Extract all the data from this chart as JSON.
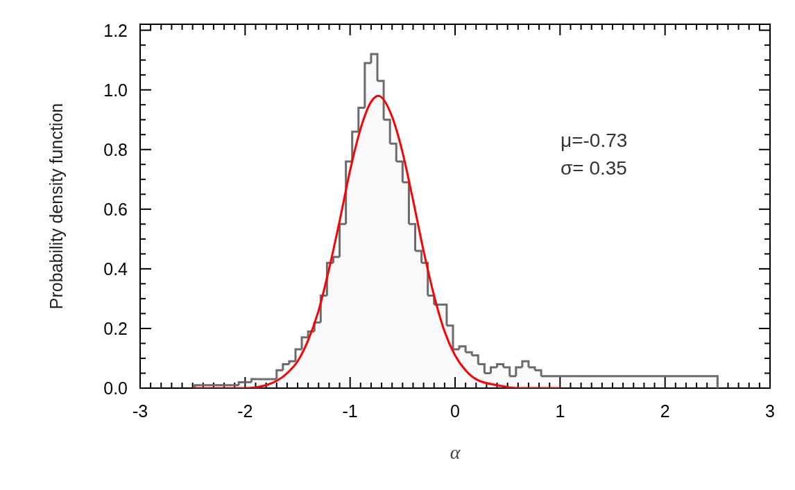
{
  "chart_data": {
    "type": "histogram",
    "xlabel": "α",
    "ylabel": "Probability density function",
    "annotations": [
      "μ=-0.73",
      "σ= 0.35"
    ],
    "bins": [
      -2.48,
      -2.42,
      -2.36,
      -2.3,
      -2.24,
      -2.18,
      -2.12,
      -2.06,
      -2.0,
      -1.94,
      -1.88,
      -1.82,
      -1.76,
      -1.7,
      -1.64,
      -1.58,
      -1.52,
      -1.46,
      -1.4,
      -1.34,
      -1.28,
      -1.22,
      -1.16,
      -1.1,
      -1.04,
      -0.98,
      -0.92,
      -0.86,
      -0.8,
      -0.74,
      -0.68,
      -0.62,
      -0.56,
      -0.5,
      -0.44,
      -0.38,
      -0.32,
      -0.26,
      -0.2,
      -0.14,
      -0.08,
      -0.02,
      0.04,
      0.1,
      0.16,
      0.22,
      0.28,
      0.34,
      0.4,
      0.46,
      0.52,
      0.58,
      0.64,
      0.7,
      0.76,
      0.82,
      2.5
    ],
    "series": [
      {
        "color": "#6b6b6b",
        "values": [
          0.01,
          0.01,
          0.01,
          0.01,
          0.01,
          0.01,
          0.01,
          0.02,
          0.02,
          0.03,
          0.03,
          0.03,
          0.03,
          0.06,
          0.08,
          0.09,
          0.13,
          0.17,
          0.19,
          0.22,
          0.31,
          0.42,
          0.44,
          0.55,
          0.76,
          0.86,
          0.94,
          1.09,
          1.12,
          1.03,
          0.9,
          0.82,
          0.76,
          0.69,
          0.55,
          0.46,
          0.42,
          0.31,
          0.28,
          0.28,
          0.21,
          0.13,
          0.14,
          0.12,
          0.11,
          0.08,
          0.05,
          0.07,
          0.08,
          0.07,
          0.04,
          0.07,
          0.09,
          0.07,
          0.06,
          0.04
        ]
      },
      {
        "type": "line",
        "color": "#ff0000",
        "x": [
          -2.5,
          -2.0,
          -1.8,
          -1.6,
          -1.5,
          -1.4,
          -1.3,
          -1.2,
          -1.1,
          -1.0,
          -0.9,
          -0.8,
          -0.73,
          -0.6,
          -0.5,
          -0.4,
          -0.3,
          -0.2,
          -0.1,
          0,
          0.1,
          0.2,
          0.4,
          0.6,
          1.0
        ],
        "values": [
          0,
          0,
          0.01,
          0.05,
          0.09,
          0.16,
          0.26,
          0.4,
          0.56,
          0.73,
          0.87,
          0.96,
          0.98,
          0.91,
          0.79,
          0.63,
          0.46,
          0.31,
          0.19,
          0.11,
          0.06,
          0.03,
          0.01,
          0,
          0
        ]
      }
    ],
    "xlim": [
      -3,
      3
    ],
    "ylim": [
      0,
      1.22
    ],
    "xticks": [
      -3,
      {
        "value": -2.9,
        "label": null
      },
      {
        "value": -2.8,
        "label": null
      },
      {
        "value": -2.7,
        "label": null
      },
      {
        "value": -2.6,
        "label": null
      },
      {
        "value": -2.5,
        "label": null
      },
      {
        "value": -2.4,
        "label": null
      },
      {
        "value": -2.3,
        "label": null
      },
      {
        "value": -2.2,
        "label": null
      },
      {
        "value": -2.1,
        "label": null
      },
      -2,
      {
        "value": -1.9,
        "label": null
      },
      {
        "value": -1.8,
        "label": null
      },
      {
        "value": -1.7,
        "label": null
      },
      {
        "value": -1.6,
        "label": null
      },
      {
        "value": -1.5,
        "label": null
      },
      {
        "value": -1.4,
        "label": null
      },
      {
        "value": -1.3,
        "label": null
      },
      {
        "value": -1.2,
        "label": null
      },
      {
        "value": -1.1,
        "label": null
      },
      -1,
      {
        "value": -0.9,
        "label": null
      },
      {
        "value": -0.8,
        "label": null
      },
      {
        "value": -0.7,
        "label": null
      },
      {
        "value": -0.6,
        "label": null
      },
      {
        "value": -0.5,
        "label": null
      },
      {
        "value": -0.4,
        "label": null
      },
      {
        "value": -0.3,
        "label": null
      },
      {
        "value": -0.2,
        "label": null
      },
      {
        "value": -0.1,
        "label": null
      },
      0,
      {
        "value": 0.1,
        "label": null
      },
      {
        "value": 0.2,
        "label": null
      },
      {
        "value": 0.3,
        "label": null
      },
      {
        "value": 0.4,
        "label": null
      },
      {
        "value": 0.5,
        "label": null
      },
      {
        "value": 0.6,
        "label": null
      },
      {
        "value": 0.7,
        "label": null
      },
      {
        "value": 0.8,
        "label": null
      },
      {
        "value": 0.9,
        "label": null
      },
      1,
      {
        "value": 1.1,
        "label": null
      },
      {
        "value": 1.2,
        "label": null
      },
      {
        "value": 1.3,
        "label": null
      },
      {
        "value": 1.4,
        "label": null
      },
      {
        "value": 1.5,
        "label": null
      },
      {
        "value": 1.6,
        "label": null
      },
      {
        "value": 1.7,
        "label": null
      },
      {
        "value": 1.8,
        "label": null
      },
      {
        "value": 1.9,
        "label": null
      },
      2,
      {
        "value": 2.1,
        "label": null
      },
      {
        "value": 2.2,
        "label": null
      },
      {
        "value": 2.3,
        "label": null
      },
      {
        "value": 2.4,
        "label": null
      },
      {
        "value": 2.5,
        "label": null
      },
      {
        "value": 2.6,
        "label": null
      },
      {
        "value": 2.7,
        "label": null
      },
      {
        "value": 2.8,
        "label": null
      },
      {
        "value": 2.9,
        "label": null
      },
      3
    ],
    "yticks": [
      {
        "value": 0,
        "label": "0.0"
      },
      {
        "value": 0.05,
        "label": null
      },
      {
        "value": 0.1,
        "label": null
      },
      {
        "value": 0.15,
        "label": null
      },
      0.2,
      {
        "value": 0.25,
        "label": null
      },
      {
        "value": 0.3,
        "label": null
      },
      {
        "value": 0.35,
        "label": null
      },
      0.4,
      {
        "value": 0.45,
        "label": null
      },
      {
        "value": 0.5,
        "label": null
      },
      {
        "value": 0.55,
        "label": null
      },
      0.6,
      {
        "value": 0.65,
        "label": null
      },
      {
        "value": 0.7,
        "label": null
      },
      {
        "value": 0.75,
        "label": null
      },
      0.8,
      {
        "value": 0.85,
        "label": null
      },
      {
        "value": 0.9,
        "label": null
      },
      {
        "value": 0.95,
        "label": null
      },
      {
        "value": 1.0,
        "label": "1.0"
      },
      {
        "value": 1.05,
        "label": null
      },
      {
        "value": 1.1,
        "label": null
      },
      {
        "value": 1.15,
        "label": null
      },
      1.2
    ],
    "grid": false
  }
}
